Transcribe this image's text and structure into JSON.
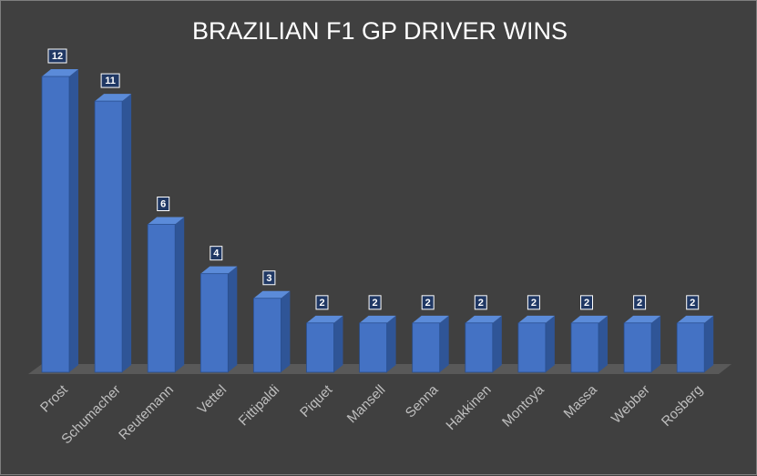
{
  "chart_data": {
    "type": "bar",
    "title": "BRAZILIAN F1 GP DRIVER WINS",
    "xlabel": "",
    "ylabel": "",
    "categories": [
      "Prost",
      "Schumacher",
      "Reutemann",
      "Vettel",
      "Fittipaldi",
      "Piquet",
      "Mansell",
      "Senna",
      "Hakkinen",
      "Montoya",
      "Massa",
      "Webber",
      "Rosberg"
    ],
    "series": [
      {
        "values": [
          12,
          11,
          6,
          4,
          3,
          2,
          2,
          2,
          2,
          2,
          2,
          2,
          2
        ]
      }
    ],
    "ylim": [
      0,
      12
    ],
    "grid": false,
    "legend": "none",
    "data_labels": true,
    "style": "3d-column",
    "colors": {
      "background": "#404040",
      "bar_front": "#4472c4",
      "bar_side": "#2f5597",
      "bar_top": "#5b8bd9",
      "floor": "#595959",
      "title": "#ffffff",
      "tick_labels": "#bfbfbf",
      "data_label_box": "#203864"
    }
  }
}
